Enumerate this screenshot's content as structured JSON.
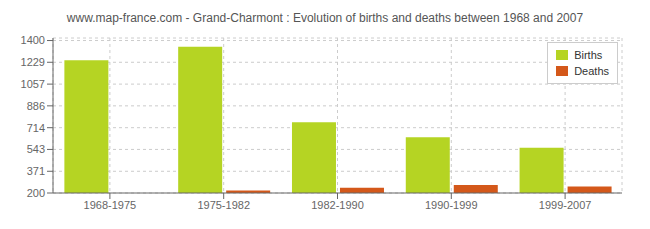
{
  "chart_data": {
    "type": "bar",
    "title": "www.map-france.com - Grand-Charmont : Evolution of births and deaths between 1968 and 2007",
    "categories": [
      "1968-1975",
      "1975-1982",
      "1982-1990",
      "1990-1999",
      "1999-2007"
    ],
    "series": [
      {
        "name": "Births",
        "color": "#b5d423",
        "values": [
          1244,
          1352,
          756,
          638,
          556
        ]
      },
      {
        "name": "Deaths",
        "color": "#d4581a",
        "values": [
          200,
          220,
          242,
          262,
          252
        ]
      }
    ],
    "ylim": [
      200,
      1420
    ],
    "yticks": [
      200,
      371,
      543,
      714,
      886,
      1057,
      1229,
      1400
    ],
    "grid": true,
    "legend": "upper right"
  }
}
